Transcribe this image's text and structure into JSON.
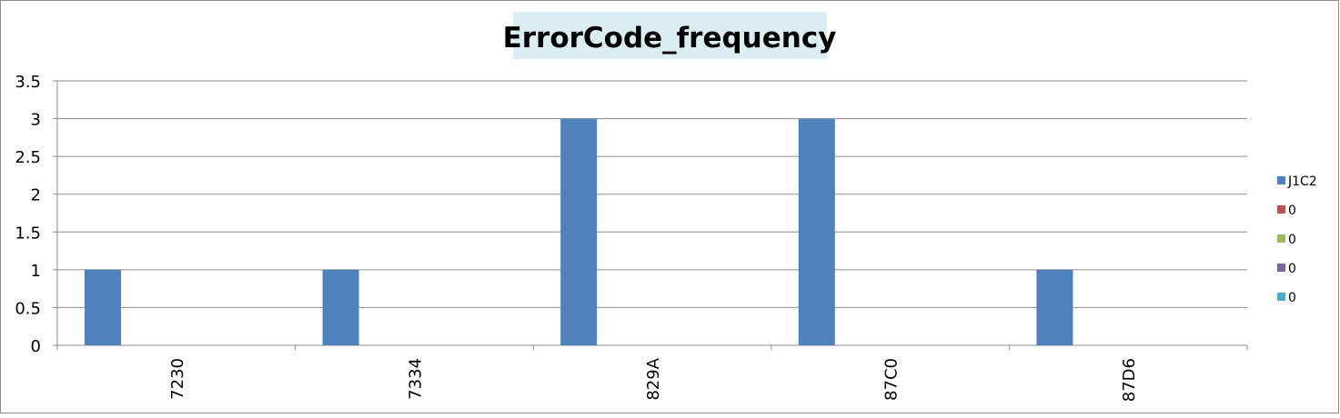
{
  "chart_data": {
    "type": "bar",
    "title": "ErrorCode_frequency",
    "categories": [
      "7230",
      "7334",
      "829A",
      "87C0",
      "87D6"
    ],
    "series": [
      {
        "name": "J1C2",
        "values": [
          1,
          1,
          3,
          3,
          1
        ],
        "color": "#4F81BD"
      },
      {
        "name": "0",
        "values": [
          0,
          0,
          0,
          0,
          0
        ],
        "color": "#C0504D"
      },
      {
        "name": "0",
        "values": [
          0,
          0,
          0,
          0,
          0
        ],
        "color": "#9BBB59"
      },
      {
        "name": "0",
        "values": [
          0,
          0,
          0,
          0,
          0
        ],
        "color": "#8064A2"
      },
      {
        "name": "0",
        "values": [
          0,
          0,
          0,
          0,
          0
        ],
        "color": "#4BACC6"
      }
    ],
    "ylim": [
      0,
      3.5
    ],
    "yticks": [
      0,
      0.5,
      1,
      1.5,
      2,
      2.5,
      3,
      3.5
    ],
    "xlabel": "",
    "ylabel": "",
    "grid": true,
    "legend": "right",
    "title_background": "#DAEEF3"
  }
}
